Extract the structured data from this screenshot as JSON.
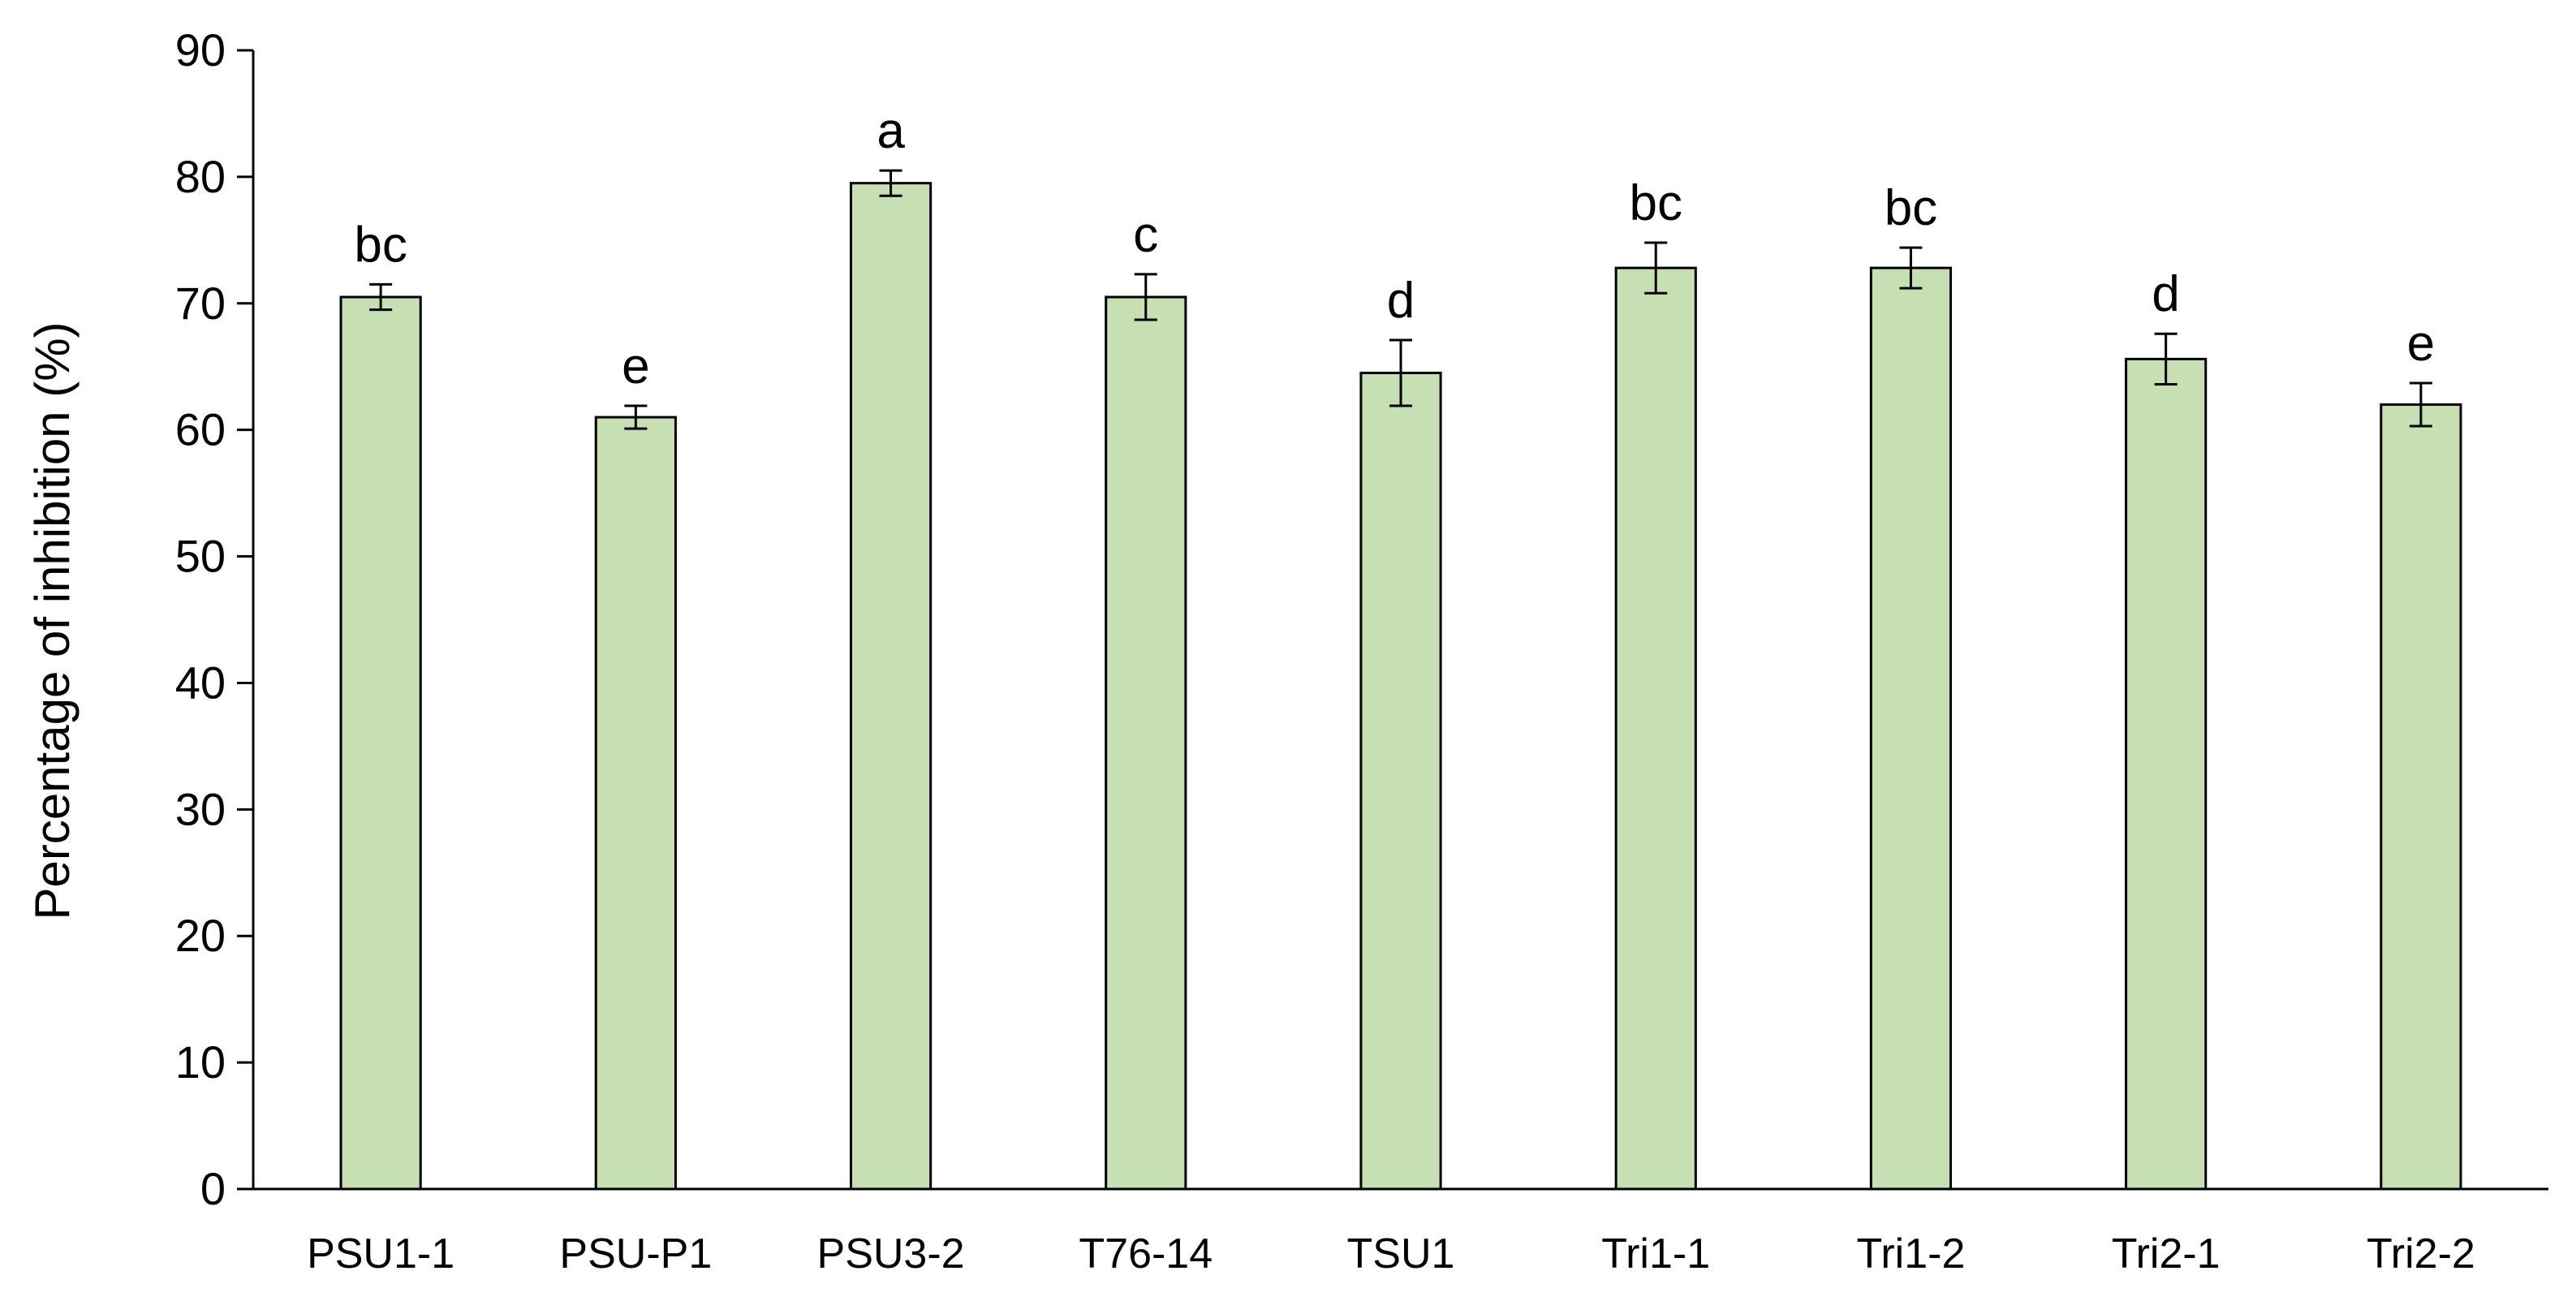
{
  "chart_data": {
    "type": "bar",
    "title": "",
    "xlabel": "",
    "ylabel": "Percentage of inhibition (%)",
    "ylim": [
      0,
      90
    ],
    "yticks": [
      0,
      10,
      20,
      30,
      40,
      50,
      60,
      70,
      80,
      90
    ],
    "grid": false,
    "legend": "none",
    "bar_color": "#c6e0b4",
    "bar_edge_color": "#000000",
    "categories": [
      "PSU1-1",
      "PSU-P1",
      "PSU3-2",
      "T76-14",
      "TSU1",
      "Tri1-1",
      "Tri1-2",
      "Tri2-1",
      "Tri2-2"
    ],
    "values": [
      70.5,
      61.0,
      79.5,
      70.5,
      64.5,
      72.8,
      72.8,
      65.6,
      62.0
    ],
    "errors": [
      1.0,
      0.9,
      1.0,
      1.8,
      2.6,
      2.0,
      1.6,
      2.0,
      1.7
    ],
    "significance_letters": [
      "bc",
      "e",
      "a",
      "c",
      "d",
      "bc",
      "bc",
      "d",
      "e"
    ]
  }
}
